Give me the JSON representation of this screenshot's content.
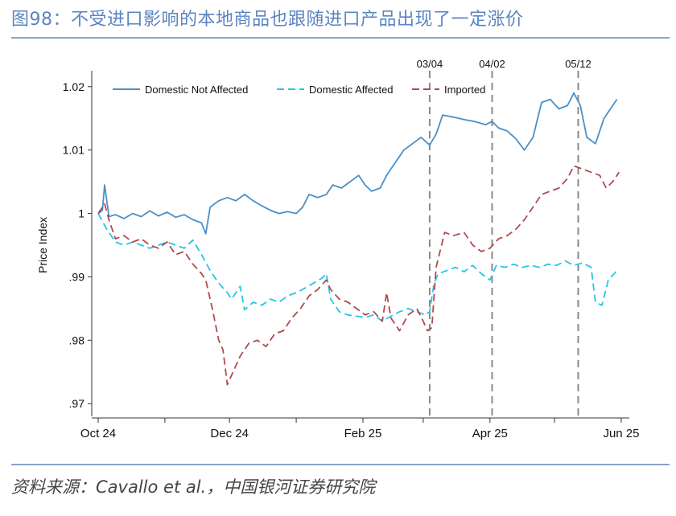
{
  "header": {
    "title": "图98：不受进口影响的本地商品也跟随进口产品出现了一定涨价"
  },
  "footer": {
    "source": "资料来源：Cavallo et al.，中国银河证券研究院"
  },
  "chart_data": {
    "type": "line",
    "ylabel": "Price Index",
    "xlabel": "",
    "ylim": [
      0.968,
      1.022
    ],
    "y_ticks": [
      ".97",
      ".98",
      ".99",
      "1",
      "1.01",
      "1.02"
    ],
    "y_tick_values": [
      0.97,
      0.98,
      0.99,
      1.0,
      1.01,
      1.02
    ],
    "x_range": [
      "2024-10-01",
      "2025-06-04"
    ],
    "x_ticks": [
      {
        "date": "2024-10-01",
        "label": "Oct 24"
      },
      {
        "date": "2024-12-01",
        "label": "Dec 24"
      },
      {
        "date": "2025-02-01",
        "label": "Feb 25"
      },
      {
        "date": "2025-04-01",
        "label": "Apr 25"
      },
      {
        "date": "2025-06-01",
        "label": "Jun 25"
      }
    ],
    "event_lines": [
      {
        "date": "2025-03-04",
        "label": "03/04"
      },
      {
        "date": "2025-04-02",
        "label": "04/02"
      },
      {
        "date": "2025-05-12",
        "label": "05/12"
      }
    ],
    "legend_position": "top",
    "series": [
      {
        "name": "Domestic Not Affected",
        "color": "#4a90c8",
        "dash": "solid",
        "points": [
          [
            "2024-10-01",
            1.0
          ],
          [
            "2024-10-03",
            1.0005
          ],
          [
            "2024-10-04",
            1.0045
          ],
          [
            "2024-10-06",
            0.9995
          ],
          [
            "2024-10-09",
            0.9998
          ],
          [
            "2024-10-13",
            0.9992
          ],
          [
            "2024-10-17",
            1.0
          ],
          [
            "2024-10-21",
            0.9995
          ],
          [
            "2024-10-25",
            1.0004
          ],
          [
            "2024-10-29",
            0.9996
          ],
          [
            "2024-11-02",
            1.0002
          ],
          [
            "2024-11-06",
            0.9994
          ],
          [
            "2024-11-10",
            0.9998
          ],
          [
            "2024-11-14",
            0.999
          ],
          [
            "2024-11-18",
            0.9985
          ],
          [
            "2024-11-20",
            0.9968
          ],
          [
            "2024-11-22",
            1.001
          ],
          [
            "2024-11-26",
            1.002
          ],
          [
            "2024-11-30",
            1.0025
          ],
          [
            "2024-12-04",
            1.002
          ],
          [
            "2024-12-08",
            1.003
          ],
          [
            "2024-12-12",
            1.002
          ],
          [
            "2024-12-16",
            1.0012
          ],
          [
            "2024-12-20",
            1.0005
          ],
          [
            "2024-12-24",
            1.0
          ],
          [
            "2024-12-28",
            1.0003
          ],
          [
            "2025-01-01",
            1.0
          ],
          [
            "2025-01-04",
            1.001
          ],
          [
            "2025-01-07",
            1.003
          ],
          [
            "2025-01-11",
            1.0025
          ],
          [
            "2025-01-15",
            1.003
          ],
          [
            "2025-01-18",
            1.0045
          ],
          [
            "2025-01-22",
            1.004
          ],
          [
            "2025-01-26",
            1.005
          ],
          [
            "2025-01-30",
            1.006
          ],
          [
            "2025-02-02",
            1.0045
          ],
          [
            "2025-02-05",
            1.0035
          ],
          [
            "2025-02-09",
            1.004
          ],
          [
            "2025-02-12",
            1.006
          ],
          [
            "2025-02-16",
            1.008
          ],
          [
            "2025-02-20",
            1.01
          ],
          [
            "2025-02-24",
            1.011
          ],
          [
            "2025-02-28",
            1.012
          ],
          [
            "2025-03-04",
            1.0108
          ],
          [
            "2025-03-07",
            1.0125
          ],
          [
            "2025-03-10",
            1.0155
          ],
          [
            "2025-03-15",
            1.0152
          ],
          [
            "2025-03-20",
            1.0148
          ],
          [
            "2025-03-25",
            1.0145
          ],
          [
            "2025-03-30",
            1.014
          ],
          [
            "2025-04-02",
            1.0145
          ],
          [
            "2025-04-05",
            1.0135
          ],
          [
            "2025-04-09",
            1.013
          ],
          [
            "2025-04-13",
            1.0118
          ],
          [
            "2025-04-17",
            1.01
          ],
          [
            "2025-04-21",
            1.012
          ],
          [
            "2025-04-25",
            1.0175
          ],
          [
            "2025-04-29",
            1.018
          ],
          [
            "2025-05-03",
            1.0165
          ],
          [
            "2025-05-07",
            1.017
          ],
          [
            "2025-05-10",
            1.019
          ],
          [
            "2025-05-13",
            1.017
          ],
          [
            "2025-05-16",
            1.012
          ],
          [
            "2025-05-20",
            1.011
          ],
          [
            "2025-05-24",
            1.015
          ],
          [
            "2025-05-28",
            1.017
          ],
          [
            "2025-05-30",
            1.018
          ]
        ]
      },
      {
        "name": "Domestic Affected",
        "color": "#26c6e6",
        "dash": "9,5",
        "points": [
          [
            "2024-10-01",
            1.0
          ],
          [
            "2024-10-05",
            0.9975
          ],
          [
            "2024-10-09",
            0.9955
          ],
          [
            "2024-10-13",
            0.995
          ],
          [
            "2024-10-17",
            0.9955
          ],
          [
            "2024-10-21",
            0.995
          ],
          [
            "2024-10-25",
            0.9945
          ],
          [
            "2024-10-29",
            0.995
          ],
          [
            "2024-11-02",
            0.9955
          ],
          [
            "2024-11-06",
            0.995
          ],
          [
            "2024-11-10",
            0.9945
          ],
          [
            "2024-11-14",
            0.9958
          ],
          [
            "2024-11-18",
            0.9935
          ],
          [
            "2024-11-22",
            0.991
          ],
          [
            "2024-11-26",
            0.989
          ],
          [
            "2024-11-30",
            0.9875
          ],
          [
            "2024-12-02",
            0.9865
          ],
          [
            "2024-12-06",
            0.9885
          ],
          [
            "2024-12-08",
            0.9848
          ],
          [
            "2024-12-12",
            0.986
          ],
          [
            "2024-12-16",
            0.9855
          ],
          [
            "2024-12-20",
            0.9865
          ],
          [
            "2024-12-24",
            0.986
          ],
          [
            "2024-12-28",
            0.987
          ],
          [
            "2025-01-01",
            0.9875
          ],
          [
            "2025-01-05",
            0.9882
          ],
          [
            "2025-01-09",
            0.989
          ],
          [
            "2025-01-13",
            0.9898
          ],
          [
            "2025-01-15",
            0.9905
          ],
          [
            "2025-01-17",
            0.9865
          ],
          [
            "2025-01-21",
            0.9845
          ],
          [
            "2025-01-25",
            0.984
          ],
          [
            "2025-01-29",
            0.9838
          ],
          [
            "2025-02-02",
            0.9836
          ],
          [
            "2025-02-06",
            0.984
          ],
          [
            "2025-02-10",
            0.983
          ],
          [
            "2025-02-14",
            0.9838
          ],
          [
            "2025-02-18",
            0.9845
          ],
          [
            "2025-02-22",
            0.985
          ],
          [
            "2025-02-26",
            0.9845
          ],
          [
            "2025-03-02",
            0.984
          ],
          [
            "2025-03-04",
            0.9845
          ],
          [
            "2025-03-06",
            0.989
          ],
          [
            "2025-03-08",
            0.9905
          ],
          [
            "2025-03-12",
            0.991
          ],
          [
            "2025-03-16",
            0.9915
          ],
          [
            "2025-03-20",
            0.9908
          ],
          [
            "2025-03-24",
            0.9918
          ],
          [
            "2025-03-28",
            0.9905
          ],
          [
            "2025-04-01",
            0.9895
          ],
          [
            "2025-04-04",
            0.9918
          ],
          [
            "2025-04-08",
            0.9915
          ],
          [
            "2025-04-12",
            0.992
          ],
          [
            "2025-04-16",
            0.9915
          ],
          [
            "2025-04-20",
            0.9918
          ],
          [
            "2025-04-24",
            0.9915
          ],
          [
            "2025-04-28",
            0.992
          ],
          [
            "2025-05-02",
            0.9918
          ],
          [
            "2025-05-06",
            0.9925
          ],
          [
            "2025-05-10",
            0.9918
          ],
          [
            "2025-05-14",
            0.9922
          ],
          [
            "2025-05-18",
            0.9915
          ],
          [
            "2025-05-20",
            0.986
          ],
          [
            "2025-05-23",
            0.9855
          ],
          [
            "2025-05-26",
            0.9895
          ],
          [
            "2025-05-30",
            0.991
          ]
        ]
      },
      {
        "name": "Imported",
        "color": "#b04a50",
        "dash": "9,5",
        "points": [
          [
            "2024-10-01",
            1.0
          ],
          [
            "2024-10-04",
            1.0015
          ],
          [
            "2024-10-06",
            0.999
          ],
          [
            "2024-10-09",
            0.996
          ],
          [
            "2024-10-13",
            0.9965
          ],
          [
            "2024-10-17",
            0.9955
          ],
          [
            "2024-10-21",
            0.996
          ],
          [
            "2024-10-25",
            0.995
          ],
          [
            "2024-10-29",
            0.9945
          ],
          [
            "2024-11-02",
            0.9955
          ],
          [
            "2024-11-06",
            0.9935
          ],
          [
            "2024-11-10",
            0.994
          ],
          [
            "2024-11-14",
            0.992
          ],
          [
            "2024-11-18",
            0.9905
          ],
          [
            "2024-11-20",
            0.9895
          ],
          [
            "2024-11-23",
            0.985
          ],
          [
            "2024-11-26",
            0.98
          ],
          [
            "2024-11-28",
            0.9785
          ],
          [
            "2024-11-30",
            0.973
          ],
          [
            "2024-12-02",
            0.9745
          ],
          [
            "2024-12-06",
            0.9775
          ],
          [
            "2024-12-10",
            0.9795
          ],
          [
            "2024-12-14",
            0.98
          ],
          [
            "2024-12-18",
            0.979
          ],
          [
            "2024-12-22",
            0.981
          ],
          [
            "2024-12-26",
            0.9815
          ],
          [
            "2024-12-30",
            0.9835
          ],
          [
            "2025-01-03",
            0.985
          ],
          [
            "2025-01-07",
            0.987
          ],
          [
            "2025-01-11",
            0.988
          ],
          [
            "2025-01-15",
            0.9895
          ],
          [
            "2025-01-17",
            0.988
          ],
          [
            "2025-01-21",
            0.9865
          ],
          [
            "2025-01-25",
            0.986
          ],
          [
            "2025-01-29",
            0.985
          ],
          [
            "2025-02-02",
            0.984
          ],
          [
            "2025-02-06",
            0.9845
          ],
          [
            "2025-02-10",
            0.983
          ],
          [
            "2025-02-12",
            0.9875
          ],
          [
            "2025-02-14",
            0.9835
          ],
          [
            "2025-02-18",
            0.9815
          ],
          [
            "2025-02-22",
            0.984
          ],
          [
            "2025-02-26",
            0.985
          ],
          [
            "2025-03-01",
            0.983
          ],
          [
            "2025-03-03",
            0.9815
          ],
          [
            "2025-03-05",
            0.982
          ],
          [
            "2025-03-07",
            0.9915
          ],
          [
            "2025-03-11",
            0.997
          ],
          [
            "2025-03-15",
            0.9965
          ],
          [
            "2025-03-20",
            0.997
          ],
          [
            "2025-03-24",
            0.995
          ],
          [
            "2025-03-28",
            0.994
          ],
          [
            "2025-04-01",
            0.9945
          ],
          [
            "2025-04-05",
            0.996
          ],
          [
            "2025-04-09",
            0.9965
          ],
          [
            "2025-04-13",
            0.9975
          ],
          [
            "2025-04-17",
            0.999
          ],
          [
            "2025-04-21",
            1.001
          ],
          [
            "2025-04-25",
            1.003
          ],
          [
            "2025-04-29",
            1.0035
          ],
          [
            "2025-05-03",
            1.004
          ],
          [
            "2025-05-07",
            1.0055
          ],
          [
            "2025-05-10",
            1.0075
          ],
          [
            "2025-05-14",
            1.007
          ],
          [
            "2025-05-18",
            1.0065
          ],
          [
            "2025-05-22",
            1.006
          ],
          [
            "2025-05-25",
            1.004
          ],
          [
            "2025-05-28",
            1.005
          ],
          [
            "2025-05-31",
            1.0065
          ]
        ]
      }
    ]
  }
}
